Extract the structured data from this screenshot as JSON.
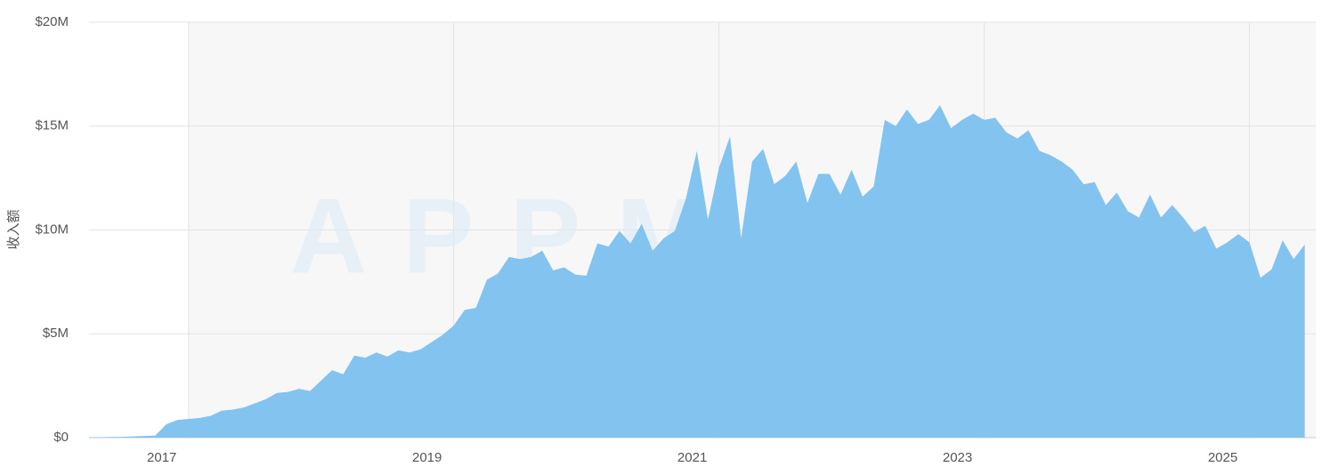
{
  "chart_data": {
    "type": "area",
    "y_label": "收入额",
    "watermark": "APPMAGIC",
    "color": "#7cc0ee",
    "x": [
      2016.25,
      2016.333,
      2016.417,
      2016.5,
      2016.583,
      2016.667,
      2016.75,
      2016.833,
      2016.917,
      2017,
      2017.083,
      2017.167,
      2017.25,
      2017.333,
      2017.417,
      2017.5,
      2017.583,
      2017.667,
      2017.75,
      2017.833,
      2017.917,
      2018,
      2018.083,
      2018.167,
      2018.25,
      2018.333,
      2018.417,
      2018.5,
      2018.583,
      2018.667,
      2018.75,
      2018.833,
      2018.917,
      2019,
      2019.083,
      2019.167,
      2019.25,
      2019.333,
      2019.417,
      2019.5,
      2019.583,
      2019.667,
      2019.75,
      2019.833,
      2019.917,
      2020,
      2020.083,
      2020.167,
      2020.25,
      2020.333,
      2020.417,
      2020.5,
      2020.583,
      2020.667,
      2020.75,
      2020.833,
      2020.917,
      2021,
      2021.083,
      2021.167,
      2021.25,
      2021.333,
      2021.417,
      2021.5,
      2021.583,
      2021.667,
      2021.75,
      2021.833,
      2021.917,
      2022,
      2022.083,
      2022.167,
      2022.25,
      2022.333,
      2022.417,
      2022.5,
      2022.583,
      2022.667,
      2022.75,
      2022.833,
      2022.917,
      2023,
      2023.083,
      2023.167,
      2023.25,
      2023.333,
      2023.417,
      2023.5,
      2023.583,
      2023.667,
      2023.75,
      2023.833,
      2023.917,
      2024,
      2024.083,
      2024.167,
      2024.25,
      2024.333,
      2024.417,
      2024.5,
      2024.583,
      2024.667,
      2024.75,
      2024.833,
      2024.917,
      2025,
      2025.083,
      2025.167,
      2025.25,
      2025.333,
      2025.417
    ],
    "values": [
      0.02,
      0.02,
      0.03,
      0.04,
      0.06,
      0.08,
      0.1,
      0.65,
      0.85,
      0.9,
      0.95,
      1.05,
      1.3,
      1.35,
      1.45,
      1.65,
      1.85,
      2.15,
      2.2,
      2.35,
      2.25,
      2.75,
      3.25,
      3.05,
      3.95,
      3.85,
      4.1,
      3.9,
      4.2,
      4.1,
      4.25,
      4.6,
      4.95,
      5.4,
      6.15,
      6.25,
      7.6,
      7.9,
      8.7,
      8.6,
      8.7,
      9.0,
      8.05,
      8.2,
      7.85,
      7.8,
      9.35,
      9.2,
      9.95,
      9.35,
      10.3,
      9.0,
      9.6,
      9.95,
      11.5,
      13.8,
      10.5,
      13.0,
      14.5,
      9.6,
      13.3,
      13.9,
      12.2,
      12.6,
      13.3,
      11.3,
      12.7,
      12.7,
      11.7,
      12.9,
      11.6,
      12.1,
      15.3,
      15.0,
      15.8,
      15.1,
      15.3,
      16.0,
      14.9,
      15.3,
      15.6,
      15.3,
      15.4,
      14.7,
      14.4,
      14.8,
      13.8,
      13.6,
      13.3,
      12.9,
      12.2,
      12.3,
      11.2,
      11.8,
      10.9,
      10.6,
      11.7,
      10.6,
      11.2,
      10.6,
      9.9,
      10.2,
      9.1,
      9.4,
      9.8,
      9.4,
      7.7,
      8.1,
      9.5,
      8.6,
      9.3
    ],
    "xlim": [
      2016.25,
      2025.5
    ],
    "xticks": [
      2017,
      2019,
      2021,
      2023,
      2025
    ],
    "ylim": [
      0,
      20
    ],
    "yticks": [
      {
        "value": 0,
        "label": "$0"
      },
      {
        "value": 5,
        "label": "$5M"
      },
      {
        "value": 10,
        "label": "$10M"
      },
      {
        "value": 15,
        "label": "$15M"
      },
      {
        "value": 20,
        "label": "$20M"
      }
    ],
    "grid": true
  }
}
